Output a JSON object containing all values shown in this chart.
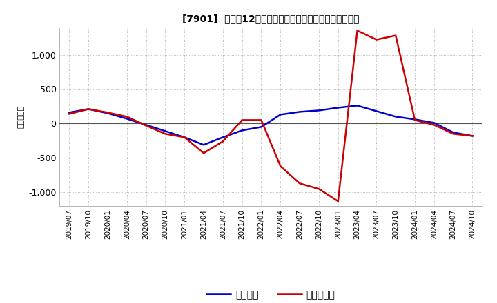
{
  "title": "[7901]  利益の12か月移動合計の対前年同期増減額の推移",
  "ylabel": "（百万円）",
  "ylim": [
    -1200,
    1400
  ],
  "yticks": [
    -1000,
    -500,
    0,
    500,
    1000
  ],
  "legend_labels": [
    "経常利益",
    "当期純利益"
  ],
  "line_colors": [
    "#0000CC",
    "#CC0000"
  ],
  "background_color": "#FFFFFF",
  "grid_color": "#AAAAAA",
  "x_labels": [
    "2019/07",
    "2019/10",
    "2020/01",
    "2020/04",
    "2020/07",
    "2020/10",
    "2021/01",
    "2021/04",
    "2021/07",
    "2021/10",
    "2022/01",
    "2022/04",
    "2022/07",
    "2022/10",
    "2023/01",
    "2023/04",
    "2023/07",
    "2023/10",
    "2024/01",
    "2024/04",
    "2024/07",
    "2024/10"
  ],
  "経常利益": [
    160,
    210,
    150,
    70,
    -20,
    -110,
    -200,
    -310,
    -200,
    -100,
    -50,
    130,
    170,
    190,
    230,
    260,
    180,
    100,
    60,
    10,
    -130,
    -180
  ],
  "当期純利益": [
    140,
    210,
    160,
    100,
    -30,
    -150,
    -200,
    -430,
    -260,
    50,
    50,
    -620,
    -870,
    -950,
    -1130,
    1350,
    1220,
    1280,
    50,
    -20,
    -150,
    -180
  ]
}
